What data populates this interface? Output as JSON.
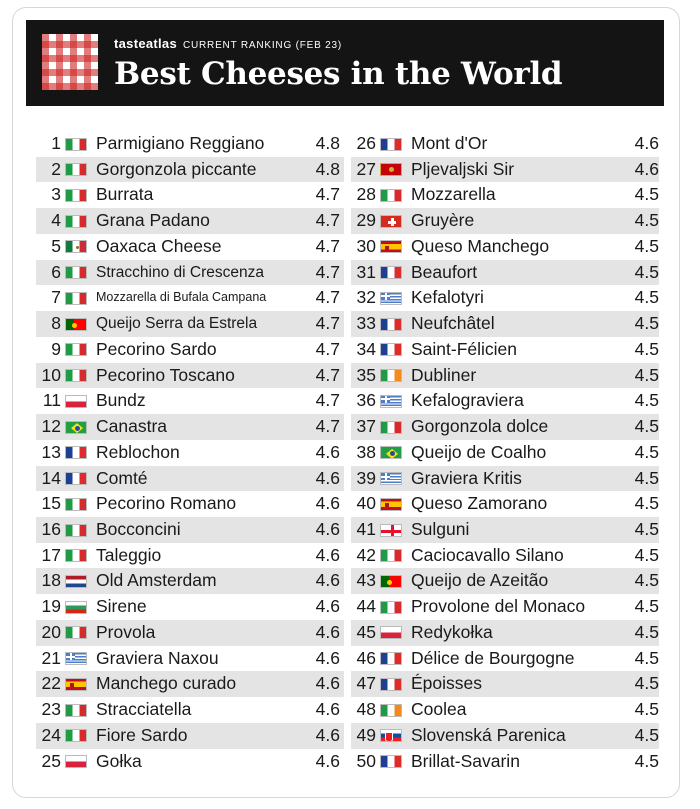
{
  "header": {
    "brand": "tasteatlas",
    "kicker": "CURRENT RANKING (FEB 23)",
    "title": "Best Cheeses in the World"
  },
  "flag_colors": {
    "italy": "#1f9b45",
    "france": "#1d3f94",
    "red": "#d72b2b"
  },
  "columns": [
    [
      {
        "rank": "1",
        "name": "Parmigiano Reggiano",
        "score": "4.8",
        "flag": "italy-flag-icon"
      },
      {
        "rank": "2",
        "name": "Gorgonzola piccante",
        "score": "4.8",
        "flag": "italy-flag-icon"
      },
      {
        "rank": "3",
        "name": "Burrata",
        "score": "4.7",
        "flag": "italy-flag-icon"
      },
      {
        "rank": "4",
        "name": "Grana Padano",
        "score": "4.7",
        "flag": "italy-flag-icon"
      },
      {
        "rank": "5",
        "name": "Oaxaca Cheese",
        "score": "4.7",
        "flag": "mexico-flag-icon"
      },
      {
        "rank": "6",
        "name": "Stracchino di Crescenza",
        "score": "4.7",
        "flag": "italy-flag-icon"
      },
      {
        "rank": "7",
        "name": "Mozzarella di Bufala Campana",
        "score": "4.7",
        "flag": "italy-flag-icon"
      },
      {
        "rank": "8",
        "name": "Queijo Serra da Estrela",
        "score": "4.7",
        "flag": "portugal-flag-icon"
      },
      {
        "rank": "9",
        "name": "Pecorino Sardo",
        "score": "4.7",
        "flag": "italy-flag-icon"
      },
      {
        "rank": "10",
        "name": "Pecorino Toscano",
        "score": "4.7",
        "flag": "italy-flag-icon"
      },
      {
        "rank": "11",
        "name": "Bundz",
        "score": "4.7",
        "flag": "poland-flag-icon"
      },
      {
        "rank": "12",
        "name": "Canastra",
        "score": "4.7",
        "flag": "brazil-flag-icon"
      },
      {
        "rank": "13",
        "name": "Reblochon",
        "score": "4.6",
        "flag": "france-flag-icon"
      },
      {
        "rank": "14",
        "name": "Comté",
        "score": "4.6",
        "flag": "france-flag-icon"
      },
      {
        "rank": "15",
        "name": "Pecorino Romano",
        "score": "4.6",
        "flag": "italy-flag-icon"
      },
      {
        "rank": "16",
        "name": "Bocconcini",
        "score": "4.6",
        "flag": "italy-flag-icon"
      },
      {
        "rank": "17",
        "name": "Taleggio",
        "score": "4.6",
        "flag": "italy-flag-icon"
      },
      {
        "rank": "18",
        "name": "Old Amsterdam",
        "score": "4.6",
        "flag": "netherlands-flag-icon"
      },
      {
        "rank": "19",
        "name": "Sirene",
        "score": "4.6",
        "flag": "bulgaria-flag-icon"
      },
      {
        "rank": "20",
        "name": "Provola",
        "score": "4.6",
        "flag": "italy-flag-icon"
      },
      {
        "rank": "21",
        "name": "Graviera Naxou",
        "score": "4.6",
        "flag": "greece-flag-icon"
      },
      {
        "rank": "22",
        "name": "Manchego curado",
        "score": "4.6",
        "flag": "spain-flag-icon"
      },
      {
        "rank": "23",
        "name": "Stracciatella",
        "score": "4.6",
        "flag": "italy-flag-icon"
      },
      {
        "rank": "24",
        "name": "Fiore Sardo",
        "score": "4.6",
        "flag": "italy-flag-icon"
      },
      {
        "rank": "25",
        "name": "Gołka",
        "score": "4.6",
        "flag": "poland-flag-icon"
      }
    ],
    [
      {
        "rank": "26",
        "name": "Mont d'Or",
        "score": "4.6",
        "flag": "france-flag-icon"
      },
      {
        "rank": "27",
        "name": "Pljevaljski Sir",
        "score": "4.6",
        "flag": "montenegro-flag-icon"
      },
      {
        "rank": "28",
        "name": "Mozzarella",
        "score": "4.5",
        "flag": "italy-flag-icon"
      },
      {
        "rank": "29",
        "name": "Gruyère",
        "score": "4.5",
        "flag": "switzerland-flag-icon"
      },
      {
        "rank": "30",
        "name": "Queso Manchego",
        "score": "4.5",
        "flag": "spain-flag-icon"
      },
      {
        "rank": "31",
        "name": "Beaufort",
        "score": "4.5",
        "flag": "france-flag-icon"
      },
      {
        "rank": "32",
        "name": "Kefalotyri",
        "score": "4.5",
        "flag": "greece-flag-icon"
      },
      {
        "rank": "33",
        "name": "Neufchâtel",
        "score": "4.5",
        "flag": "france-flag-icon"
      },
      {
        "rank": "34",
        "name": "Saint-Félicien",
        "score": "4.5",
        "flag": "france-flag-icon"
      },
      {
        "rank": "35",
        "name": "Dubliner",
        "score": "4.5",
        "flag": "ireland-flag-icon"
      },
      {
        "rank": "36",
        "name": "Kefalograviera",
        "score": "4.5",
        "flag": "greece-flag-icon"
      },
      {
        "rank": "37",
        "name": "Gorgonzola dolce",
        "score": "4.5",
        "flag": "italy-flag-icon"
      },
      {
        "rank": "38",
        "name": "Queijo de Coalho",
        "score": "4.5",
        "flag": "brazil-flag-icon"
      },
      {
        "rank": "39",
        "name": "Graviera Kritis",
        "score": "4.5",
        "flag": "greece-flag-icon"
      },
      {
        "rank": "40",
        "name": "Queso Zamorano",
        "score": "4.5",
        "flag": "spain-flag-icon"
      },
      {
        "rank": "41",
        "name": "Sulguni",
        "score": "4.5",
        "flag": "georgia-flag-icon"
      },
      {
        "rank": "42",
        "name": "Caciocavallo Silano",
        "score": "4.5",
        "flag": "italy-flag-icon"
      },
      {
        "rank": "43",
        "name": "Queijo de Azeitão",
        "score": "4.5",
        "flag": "portugal-flag-icon"
      },
      {
        "rank": "44",
        "name": "Provolone del Monaco",
        "score": "4.5",
        "flag": "italy-flag-icon"
      },
      {
        "rank": "45",
        "name": "Redykołka",
        "score": "4.5",
        "flag": "poland-flag-icon"
      },
      {
        "rank": "46",
        "name": "Délice de Bourgogne",
        "score": "4.5",
        "flag": "france-flag-icon"
      },
      {
        "rank": "47",
        "name": "Époisses",
        "score": "4.5",
        "flag": "france-flag-icon"
      },
      {
        "rank": "48",
        "name": "Coolea",
        "score": "4.5",
        "flag": "ireland-flag-icon"
      },
      {
        "rank": "49",
        "name": "Slovenská Parenica",
        "score": "4.5",
        "flag": "slovakia-flag-icon"
      },
      {
        "rank": "50",
        "name": "Brillat-Savarin",
        "score": "4.5",
        "flag": "france-flag-icon"
      }
    ]
  ]
}
